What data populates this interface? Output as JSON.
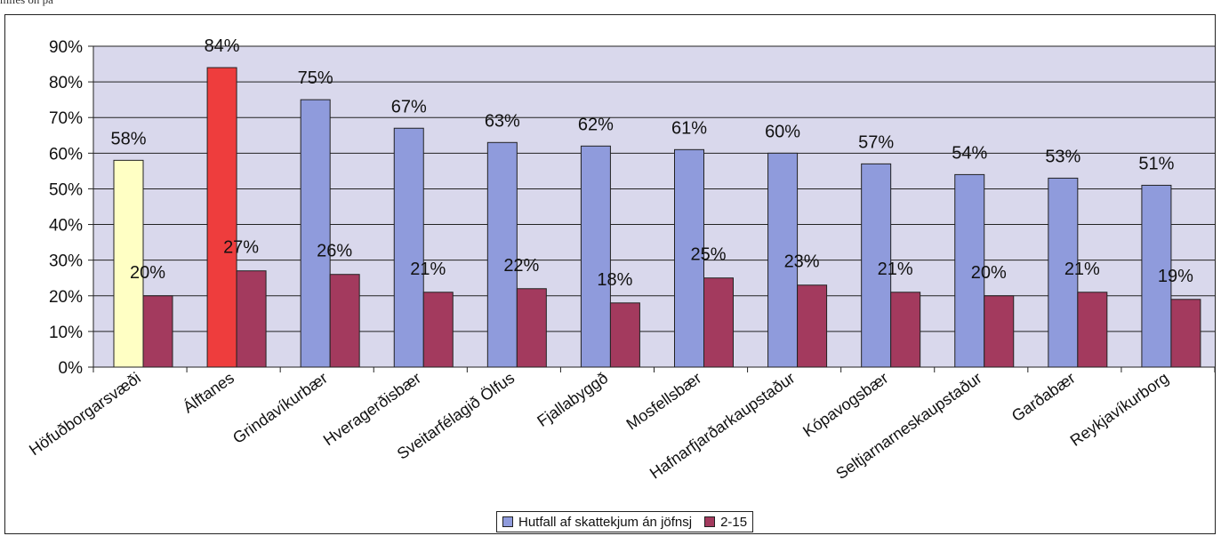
{
  "header_fragment": "miles on pa",
  "colors": {
    "plot_bg": "#d9d8ec",
    "series1": "#8f9bdc",
    "series2": "#a33a5e",
    "highlight_yellow": "#ffffc4",
    "highlight_red": "#ee3d3d"
  },
  "chart_data": {
    "type": "bar",
    "title": "",
    "xlabel": "",
    "ylabel": "",
    "ylim": [
      0,
      90
    ],
    "y_ticks": [
      "0%",
      "10%",
      "20%",
      "30%",
      "40%",
      "50%",
      "60%",
      "70%",
      "80%",
      "90%"
    ],
    "grid": true,
    "legend_position": "bottom",
    "categories": [
      "Höfuðborgarsvæði",
      "Álftanes",
      "Grindavíkurbær",
      "Hveragerðisbær",
      "Sveitarfélagið Ölfus",
      "Fjallabyggð",
      "Mosfellsbær",
      "Hafnarfjarðarkaupstaður",
      "Kópavogsbær",
      "Seltjarnarneskaupstaður",
      "Garðabær",
      "Reykjavíkurborg"
    ],
    "series": [
      {
        "name": "Hutfall af skattekjum án jöfnsj",
        "values": [
          58,
          84,
          75,
          67,
          63,
          62,
          61,
          60,
          57,
          54,
          53,
          51
        ],
        "labels": [
          "58%",
          "84%",
          "75%",
          "67%",
          "63%",
          "62%",
          "61%",
          "60%",
          "57%",
          "54%",
          "53%",
          "51%"
        ],
        "bar_colors": [
          "#ffffc4",
          "#ee3d3d",
          "#8f9bdc",
          "#8f9bdc",
          "#8f9bdc",
          "#8f9bdc",
          "#8f9bdc",
          "#8f9bdc",
          "#8f9bdc",
          "#8f9bdc",
          "#8f9bdc",
          "#8f9bdc"
        ]
      },
      {
        "name": "2-15",
        "values": [
          20,
          27,
          26,
          21,
          22,
          18,
          25,
          23,
          21,
          20,
          21,
          19
        ],
        "labels": [
          "20%",
          "27%",
          "26%",
          "21%",
          "22%",
          "18%",
          "25%",
          "23%",
          "21%",
          "20%",
          "21%",
          "19%"
        ]
      }
    ]
  }
}
